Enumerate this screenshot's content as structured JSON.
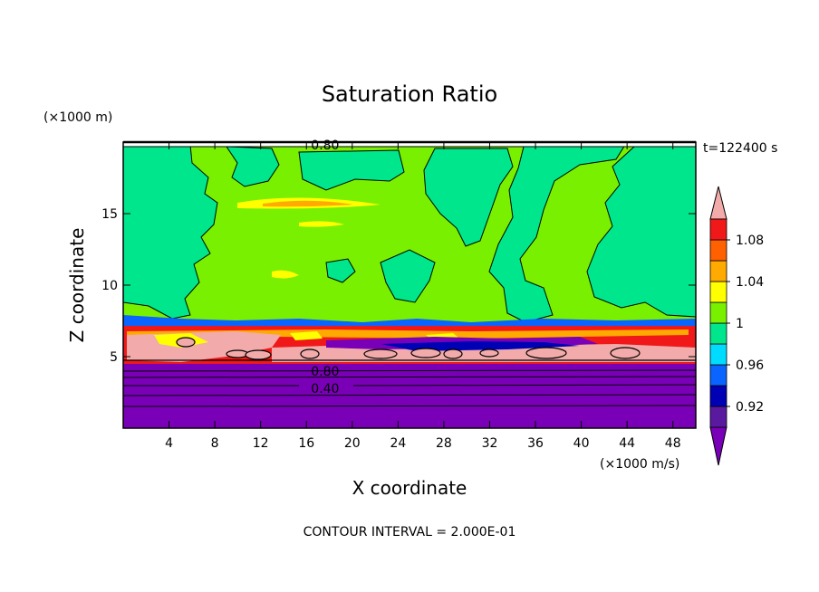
{
  "chart_data": {
    "type": "heatmap",
    "title": "Saturation Ratio",
    "xlabel": "X coordinate",
    "ylabel": "Z coordinate",
    "x_unit": "(×1000 m/s)",
    "y_unit": "(×1000 m)",
    "time_label": "t=122400 s",
    "footer": "CONTOUR INTERVAL = 2.000E-01",
    "xlim": [
      0,
      50
    ],
    "ylim": [
      0,
      20
    ],
    "x_ticks": [
      4,
      8,
      12,
      16,
      20,
      24,
      28,
      32,
      36,
      40,
      44,
      48
    ],
    "y_ticks": [
      5,
      10,
      15
    ],
    "contour_labels": [
      {
        "text": "0.80",
        "x": 17,
        "z": 19.8
      },
      {
        "text": "0.80",
        "x": 17,
        "z": 4.0
      },
      {
        "text": "0.40",
        "x": 17,
        "z": 2.8
      }
    ],
    "colorbar": {
      "tick_labels": [
        "0.92",
        "0.96",
        "1",
        "1.04",
        "1.08"
      ],
      "levels": [
        {
          "label": "< 0.90",
          "color": "#7a00b8"
        },
        {
          "label": "0.90-0.92",
          "color": "#5a1aa0"
        },
        {
          "label": "0.92-0.94",
          "color": "#0000b4"
        },
        {
          "label": "0.94-0.96",
          "color": "#0a64ff"
        },
        {
          "label": "0.96-0.98",
          "color": "#00dcff"
        },
        {
          "label": "0.98-1.00",
          "color": "#00e68c"
        },
        {
          "label": "1.00-1.02",
          "color": "#78f000"
        },
        {
          "label": "1.02-1.04",
          "color": "#ffff00"
        },
        {
          "label": "1.04-1.06",
          "color": "#ffaa00"
        },
        {
          "label": "1.06-1.08",
          "color": "#ff6000"
        },
        {
          "label": "1.08-1.10",
          "color": "#f01818"
        },
        {
          "label": "> 1.10",
          "color": "#f2aaaa"
        }
      ]
    },
    "colors": {
      "purple": "#7a00b8",
      "teal_green": "#00e68c",
      "lime": "#78f000",
      "yellow": "#ffff00",
      "orange": "#ffaa00",
      "red": "#f01818",
      "pink": "#f2aaaa",
      "cyan": "#00dcff",
      "blue": "#0a64ff"
    }
  }
}
